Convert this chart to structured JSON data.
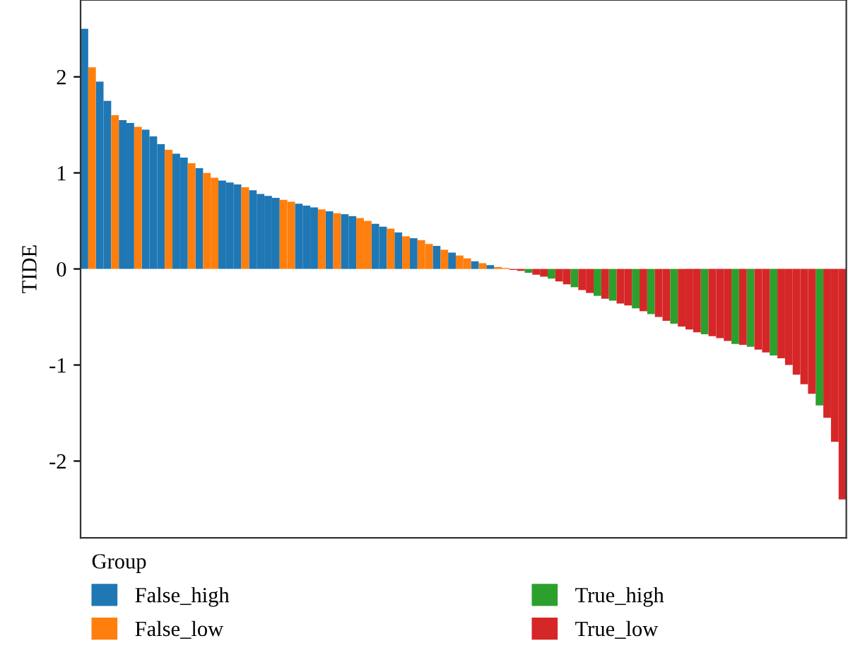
{
  "chart_data": {
    "type": "bar",
    "ylabel": "TIDE",
    "legend_title": "Group",
    "legend": "bottom",
    "grid": false,
    "tick_labels": "y",
    "ylim": [
      -2.8,
      2.8
    ],
    "yticks": [
      -2,
      -1,
      0,
      1,
      2
    ],
    "categories": [
      null,
      null,
      null,
      null,
      null,
      null,
      null,
      null,
      null,
      null,
      null,
      null,
      null,
      null,
      null,
      null,
      null,
      null,
      null,
      null,
      null,
      null,
      null,
      null,
      null,
      null,
      null,
      null,
      null,
      null,
      null,
      null,
      null,
      null,
      null,
      null,
      null,
      null,
      null,
      null,
      null,
      null,
      null,
      null,
      null,
      null,
      null,
      null,
      null,
      null,
      null,
      null,
      null,
      null,
      null,
      null,
      null,
      null,
      null,
      null,
      null,
      null,
      null,
      null,
      null,
      null,
      null,
      null,
      null,
      null,
      null,
      null,
      null,
      null,
      null,
      null,
      null,
      null,
      null,
      null,
      null,
      null,
      null,
      null,
      null,
      null,
      null,
      null,
      null,
      null,
      null,
      null,
      null,
      null,
      null,
      null,
      null,
      null,
      null,
      null
    ],
    "series": [
      {
        "name": "False_high",
        "color": "#1f77b4",
        "values": [
          2.5,
          null,
          1.95,
          1.75,
          null,
          1.55,
          1.52,
          null,
          1.45,
          1.38,
          1.3,
          null,
          1.2,
          1.16,
          null,
          1.05,
          null,
          null,
          0.92,
          0.9,
          0.88,
          null,
          0.82,
          0.78,
          0.76,
          0.74,
          null,
          null,
          0.68,
          0.66,
          0.64,
          null,
          0.6,
          null,
          0.57,
          0.55,
          null,
          null,
          0.47,
          0.44,
          null,
          0.38,
          null,
          0.32,
          null,
          null,
          0.24,
          null,
          0.17,
          null,
          null,
          0.08,
          null,
          0.04,
          null,
          null,
          null,
          null,
          null,
          null,
          null,
          null,
          null,
          null,
          null,
          null,
          null,
          null,
          null,
          null,
          null,
          null,
          null,
          null,
          null,
          null,
          null,
          null,
          null,
          null,
          null,
          null,
          null,
          null,
          null,
          null,
          null,
          null,
          null,
          null,
          null,
          null,
          null,
          null,
          null,
          null,
          null,
          null,
          null,
          null
        ]
      },
      {
        "name": "False_low",
        "color": "#ff7f0e",
        "values": [
          null,
          2.1,
          null,
          null,
          1.6,
          null,
          null,
          1.48,
          null,
          null,
          null,
          1.24,
          null,
          null,
          1.1,
          null,
          1.0,
          0.95,
          null,
          null,
          null,
          0.85,
          null,
          null,
          null,
          null,
          0.72,
          0.7,
          null,
          null,
          null,
          0.62,
          null,
          0.58,
          null,
          null,
          0.53,
          0.5,
          null,
          null,
          0.42,
          null,
          0.34,
          null,
          0.3,
          0.26,
          null,
          0.2,
          null,
          0.14,
          0.11,
          null,
          0.06,
          null,
          0.02,
          0.01,
          null,
          null,
          null,
          null,
          null,
          null,
          null,
          null,
          null,
          null,
          null,
          null,
          null,
          null,
          null,
          null,
          null,
          null,
          null,
          null,
          null,
          null,
          null,
          null,
          null,
          null,
          null,
          null,
          null,
          null,
          null,
          null,
          null,
          null,
          null,
          null,
          null,
          null,
          null,
          null,
          null,
          null,
          null,
          null
        ]
      },
      {
        "name": "True_high",
        "color": "#2ca02c",
        "values": [
          null,
          null,
          null,
          null,
          null,
          null,
          null,
          null,
          null,
          null,
          null,
          null,
          null,
          null,
          null,
          null,
          null,
          null,
          null,
          null,
          null,
          null,
          null,
          null,
          null,
          null,
          null,
          null,
          null,
          null,
          null,
          null,
          null,
          null,
          null,
          null,
          null,
          null,
          null,
          null,
          null,
          null,
          null,
          null,
          null,
          null,
          null,
          null,
          null,
          null,
          null,
          null,
          null,
          null,
          null,
          null,
          null,
          null,
          -0.04,
          null,
          null,
          -0.1,
          null,
          null,
          -0.19,
          null,
          null,
          -0.28,
          null,
          -0.33,
          null,
          null,
          -0.41,
          null,
          -0.47,
          null,
          null,
          -0.57,
          null,
          null,
          null,
          -0.68,
          null,
          null,
          null,
          -0.78,
          null,
          -0.81,
          null,
          null,
          -0.9,
          null,
          null,
          null,
          null,
          null,
          -1.42,
          null,
          null,
          null
        ]
      },
      {
        "name": "True_low",
        "color": "#d62728",
        "values": [
          null,
          null,
          null,
          null,
          null,
          null,
          null,
          null,
          null,
          null,
          null,
          null,
          null,
          null,
          null,
          null,
          null,
          null,
          null,
          null,
          null,
          null,
          null,
          null,
          null,
          null,
          null,
          null,
          null,
          null,
          null,
          null,
          null,
          null,
          null,
          null,
          null,
          null,
          null,
          null,
          null,
          null,
          null,
          null,
          null,
          null,
          null,
          null,
          null,
          null,
          null,
          null,
          null,
          null,
          null,
          null,
          -0.01,
          -0.02,
          null,
          -0.06,
          -0.08,
          null,
          -0.13,
          -0.16,
          null,
          -0.22,
          -0.25,
          null,
          -0.31,
          null,
          -0.36,
          -0.38,
          null,
          -0.44,
          null,
          -0.5,
          -0.54,
          null,
          -0.6,
          -0.63,
          -0.66,
          null,
          -0.7,
          -0.72,
          -0.75,
          null,
          -0.79,
          null,
          -0.84,
          -0.87,
          null,
          -0.93,
          -1.0,
          -1.1,
          -1.2,
          -1.3,
          null,
          -1.55,
          -1.8,
          -2.4
        ]
      }
    ]
  }
}
